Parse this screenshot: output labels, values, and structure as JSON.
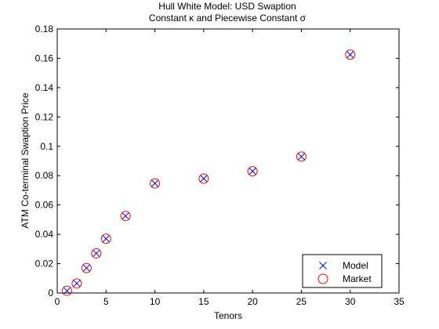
{
  "chart_data": {
    "type": "scatter",
    "title": "Hull White Model: USD Swaption",
    "subtitle": "Constant κ and Piecewise Constant σ",
    "xlabel": "Tenors",
    "ylabel": "ATM Co-terminal Swaption Price",
    "xlim": [
      0,
      35
    ],
    "ylim": [
      0,
      0.18
    ],
    "xticks": [
      0,
      5,
      10,
      15,
      20,
      25,
      30,
      35
    ],
    "xtick_labels": [
      "0",
      "5",
      "10",
      "15",
      "20",
      "25",
      "30",
      "35"
    ],
    "yticks": [
      0,
      0.02,
      0.04,
      0.06,
      0.08,
      0.1,
      0.12,
      0.14,
      0.16,
      0.18
    ],
    "ytick_labels": [
      "0",
      "0.02",
      "0.04",
      "0.06",
      "0.08",
      "0.1",
      "0.12",
      "0.14",
      "0.16",
      "0.18"
    ],
    "grid": false,
    "legend_position": "bottom-right",
    "x": [
      1,
      2,
      3,
      4,
      5,
      7,
      10,
      15,
      20,
      25,
      30
    ],
    "series": [
      {
        "name": "Model",
        "marker": "x",
        "color": "#0000ff",
        "values": [
          0.0015,
          0.0065,
          0.017,
          0.027,
          0.037,
          0.0525,
          0.0747,
          0.078,
          0.083,
          0.093,
          0.1625
        ]
      },
      {
        "name": "Market",
        "marker": "circle",
        "color": "#ff0000",
        "values": [
          0.0015,
          0.0065,
          0.017,
          0.027,
          0.037,
          0.0525,
          0.0747,
          0.078,
          0.083,
          0.093,
          0.1625
        ]
      }
    ]
  }
}
